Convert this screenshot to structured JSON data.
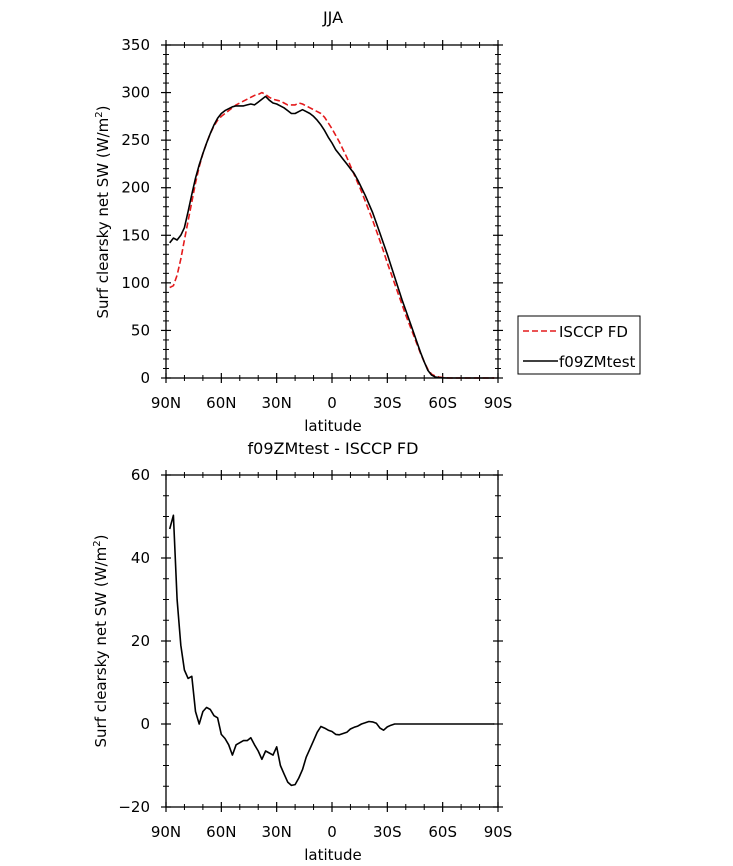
{
  "chart_data": [
    {
      "type": "line",
      "title": "JJA",
      "xlabel": "latitude",
      "ylabel": "Surf clearsky net SW (W/m",
      "ylabel_sup": "2",
      "ylabel_close": ")",
      "xlim": [
        90,
        -90
      ],
      "ylim": [
        0,
        350
      ],
      "yticks": [
        0,
        50,
        100,
        150,
        200,
        250,
        300,
        350
      ],
      "xticks": [
        90,
        60,
        30,
        0,
        -30,
        -60,
        -90
      ],
      "xticklabels": [
        "90N",
        "60N",
        "30N",
        "0",
        "30S",
        "60S",
        "90S"
      ],
      "legend": {
        "placement": "right",
        "entries": [
          {
            "name": "ISCCP FD",
            "color": "#e41a1c",
            "dash": "dashed"
          },
          {
            "name": "f09ZMtest",
            "color": "#000000",
            "dash": "solid"
          }
        ]
      },
      "series": [
        {
          "name": "ISCCP FD",
          "color": "#e41a1c",
          "dash": "dashed",
          "x": [
            88,
            86,
            84,
            82,
            80,
            78,
            76,
            74,
            72,
            70,
            68,
            66,
            64,
            62,
            60,
            58,
            56,
            54,
            52,
            50,
            48,
            46,
            44,
            42,
            40,
            38,
            36,
            34,
            32,
            30,
            28,
            26,
            24,
            22,
            20,
            18,
            16,
            14,
            12,
            10,
            8,
            6,
            4,
            2,
            0,
            -2,
            -4,
            -6,
            -8,
            -10,
            -12,
            -14,
            -16,
            -18,
            -20,
            -22,
            -24,
            -26,
            -28,
            -30,
            -32,
            -34,
            -36,
            -38,
            -40,
            -42,
            -44,
            -46,
            -48,
            -50,
            -52,
            -54,
            -56,
            -58,
            -60,
            -62,
            -64,
            -66,
            -68,
            -70,
            -72,
            -74,
            -76,
            -78,
            -80,
            -82,
            -84,
            -86,
            -88
          ],
          "y": [
            95,
            97,
            108,
            125,
            145,
            165,
            185,
            205,
            222,
            236,
            247,
            257,
            265,
            271,
            275,
            278,
            281,
            284,
            287,
            289,
            291,
            293,
            295,
            297,
            298,
            300,
            298,
            295,
            293,
            292,
            291,
            289,
            287,
            287,
            287,
            289,
            288,
            286,
            284,
            282,
            280,
            278,
            274,
            268,
            262,
            255,
            248,
            240,
            232,
            223,
            214,
            205,
            196,
            186,
            176,
            166,
            155,
            144,
            133,
            121,
            110,
            99,
            88,
            77,
            66,
            56,
            46,
            36,
            26,
            17,
            9,
            4,
            2,
            1,
            0.5,
            0.2,
            0,
            0,
            0,
            0,
            0,
            0,
            0,
            0,
            0,
            0,
            0,
            0,
            0
          ]
        },
        {
          "name": "f09ZMtest",
          "color": "#000000",
          "dash": "solid",
          "x": [
            88,
            86,
            84,
            82,
            80,
            78,
            76,
            74,
            72,
            70,
            68,
            66,
            64,
            62,
            60,
            58,
            56,
            54,
            52,
            50,
            48,
            46,
            44,
            42,
            40,
            38,
            36,
            34,
            32,
            30,
            28,
            26,
            24,
            22,
            20,
            18,
            16,
            14,
            12,
            10,
            8,
            6,
            4,
            2,
            0,
            -2,
            -4,
            -6,
            -8,
            -10,
            -12,
            -14,
            -16,
            -18,
            -20,
            -22,
            -24,
            -26,
            -28,
            -30,
            -32,
            -34,
            -36,
            -38,
            -40,
            -42,
            -44,
            -46,
            -48,
            -50,
            -52,
            -54,
            -56,
            -58,
            -60,
            -62,
            -64,
            -66,
            -68,
            -70,
            -72,
            -74,
            -76,
            -78,
            -80,
            -82,
            -84,
            -86,
            -88
          ],
          "y": [
            142,
            147,
            145,
            150,
            158,
            175,
            193,
            210,
            224,
            236,
            247,
            257,
            266,
            273,
            278,
            281,
            283,
            285,
            286,
            286,
            286,
            287,
            288,
            287,
            290,
            293,
            296,
            292,
            289,
            288,
            286,
            284,
            281,
            278,
            278,
            280,
            282,
            280,
            278,
            275,
            271,
            266,
            260,
            253,
            247,
            240,
            235,
            230,
            225,
            220,
            215,
            208,
            200,
            192,
            183,
            174,
            163,
            152,
            141,
            130,
            118,
            106,
            94,
            82,
            71,
            60,
            49,
            38,
            27,
            17,
            8,
            3,
            1,
            0.5,
            0.2,
            0,
            0,
            0,
            0,
            0,
            0,
            0,
            0,
            0,
            0,
            0,
            0,
            0,
            0
          ]
        }
      ]
    },
    {
      "type": "line",
      "title": "f09ZMtest - ISCCP FD",
      "xlabel": "latitude",
      "ylabel": "Surf clearsky net SW (W/m",
      "ylabel_sup": "2",
      "ylabel_close": ")",
      "xlim": [
        90,
        -90
      ],
      "ylim": [
        -20,
        60
      ],
      "yticks": [
        -20,
        0,
        20,
        40,
        60
      ],
      "xticks": [
        90,
        60,
        30,
        0,
        -30,
        -60,
        -90
      ],
      "xticklabels": [
        "90N",
        "60N",
        "30N",
        "0",
        "30S",
        "60S",
        "90S"
      ],
      "series": [
        {
          "color": "#000000",
          "dash": "solid",
          "x": [
            88,
            86,
            84,
            82,
            80,
            78,
            76,
            74,
            72,
            70,
            68,
            66,
            64,
            62,
            60,
            58,
            56,
            54,
            52,
            50,
            48,
            46,
            44,
            42,
            40,
            38,
            36,
            34,
            32,
            30,
            28,
            26,
            24,
            22,
            20,
            18,
            16,
            14,
            12,
            10,
            8,
            6,
            4,
            2,
            0,
            -2,
            -4,
            -6,
            -8,
            -10,
            -12,
            -14,
            -16,
            -18,
            -20,
            -22,
            -24,
            -26,
            -28,
            -30,
            -32,
            -34,
            -36,
            -38,
            -40,
            -42,
            -44,
            -46,
            -48,
            -50,
            -52,
            -54,
            -56,
            -58,
            -60,
            -62,
            -64,
            -66,
            -68,
            -70,
            -72,
            -74,
            -76,
            -78,
            -80,
            -82,
            -84,
            -86,
            -88
          ],
          "y": [
            47,
            50.3,
            30,
            19,
            13,
            11,
            11.5,
            3,
            0,
            3,
            4,
            3.5,
            2,
            1.5,
            -2.5,
            -3.5,
            -5,
            -7.5,
            -5,
            -4.5,
            -4,
            -4,
            -3.3,
            -5,
            -6.5,
            -8.5,
            -6.5,
            -7,
            -7.5,
            -5.5,
            -10,
            -12,
            -14,
            -14.8,
            -14.6,
            -13,
            -11,
            -8,
            -6,
            -4,
            -2,
            -0.6,
            -1,
            -1.5,
            -1.8,
            -2.5,
            -2.6,
            -2.3,
            -2,
            -1.2,
            -0.8,
            -0.5,
            0,
            0.3,
            0.6,
            0.5,
            0.2,
            -1,
            -1.5,
            -0.7,
            -0.3,
            0,
            0,
            0,
            0,
            0,
            0,
            0,
            0,
            0,
            0,
            0,
            0,
            0,
            0,
            0,
            0,
            0,
            0,
            0,
            0,
            0,
            0,
            0,
            0,
            0,
            0,
            0,
            0
          ]
        }
      ]
    }
  ]
}
